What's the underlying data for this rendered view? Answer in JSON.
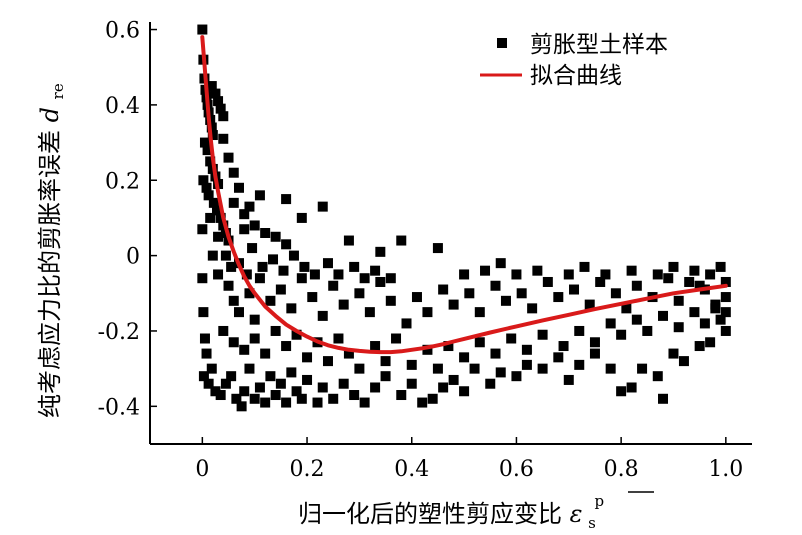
{
  "chart_data": {
    "type": "scatter",
    "title": "",
    "xlabel": "归一化后的塑性剪应变比",
    "xlabel_symbol": "ε",
    "xlabel_symbol_sup": "p",
    "xlabel_symbol_sub": "s",
    "ylabel": "纯考虑应力比的剪胀率误差",
    "ylabel_symbol": "d",
    "ylabel_symbol_sub": "re",
    "xlim": [
      -0.1,
      1.05
    ],
    "ylim": [
      -0.5,
      0.62
    ],
    "x_ticks": [
      "0",
      "0.2",
      "0.4",
      "0.6",
      "0.8",
      "1.0"
    ],
    "x_tick_values": [
      0,
      0.2,
      0.4,
      0.6,
      0.8,
      1.0
    ],
    "y_ticks": [
      "0.6",
      "0.4",
      "0.2",
      "0",
      "-0.2",
      "-0.4"
    ],
    "y_tick_values": [
      0.6,
      0.4,
      0.2,
      0,
      -0.2,
      -0.4
    ],
    "grid": false,
    "legend_position": "top-right",
    "series": [
      {
        "name": "剪胀型土样本",
        "kind": "scatter",
        "color": "#000000",
        "marker": "square",
        "points": [
          [
            0.0,
            0.6
          ],
          [
            0.002,
            0.52
          ],
          [
            0.004,
            0.47
          ],
          [
            0.006,
            0.44
          ],
          [
            0.008,
            0.42
          ],
          [
            0.01,
            0.4
          ],
          [
            0.012,
            0.38
          ],
          [
            0.015,
            0.36
          ],
          [
            0.018,
            0.34
          ],
          [
            0.02,
            0.32
          ],
          [
            0.005,
            0.3
          ],
          [
            0.01,
            0.28
          ],
          [
            0.015,
            0.25
          ],
          [
            0.02,
            0.23
          ],
          [
            0.025,
            0.21
          ],
          [
            0.03,
            0.19
          ],
          [
            0.002,
            0.2
          ],
          [
            0.008,
            0.18
          ],
          [
            0.012,
            0.16
          ],
          [
            0.022,
            0.14
          ],
          [
            0.028,
            0.12
          ],
          [
            0.035,
            0.1
          ],
          [
            0.04,
            0.08
          ],
          [
            0.045,
            0.06
          ],
          [
            0.05,
            0.04
          ],
          [
            0.03,
            0.41
          ],
          [
            0.025,
            0.43
          ],
          [
            0.018,
            0.45
          ],
          [
            0.035,
            0.39
          ],
          [
            0.04,
            0.37
          ],
          [
            0.0,
            0.07
          ],
          [
            0.0,
            -0.06
          ],
          [
            0.002,
            -0.15
          ],
          [
            0.005,
            -0.22
          ],
          [
            0.003,
            -0.32
          ],
          [
            0.008,
            -0.26
          ],
          [
            0.012,
            -0.34
          ],
          [
            0.018,
            -0.3
          ],
          [
            0.025,
            -0.36
          ],
          [
            0.035,
            -0.37
          ],
          [
            0.045,
            -0.34
          ],
          [
            0.055,
            -0.32
          ],
          [
            0.065,
            -0.38
          ],
          [
            0.075,
            -0.4
          ],
          [
            0.08,
            -0.36
          ],
          [
            0.09,
            -0.3
          ],
          [
            0.1,
            -0.38
          ],
          [
            0.11,
            -0.35
          ],
          [
            0.12,
            -0.39
          ],
          [
            0.13,
            -0.32
          ],
          [
            0.14,
            -0.37
          ],
          [
            0.15,
            -0.34
          ],
          [
            0.16,
            -0.39
          ],
          [
            0.17,
            -0.31
          ],
          [
            0.18,
            -0.36
          ],
          [
            0.19,
            -0.38
          ],
          [
            0.2,
            -0.33
          ],
          [
            0.22,
            -0.39
          ],
          [
            0.23,
            -0.35
          ],
          [
            0.25,
            -0.38
          ],
          [
            0.27,
            -0.34
          ],
          [
            0.29,
            -0.37
          ],
          [
            0.31,
            -0.39
          ],
          [
            0.33,
            -0.35
          ],
          [
            0.35,
            -0.32
          ],
          [
            0.38,
            -0.37
          ],
          [
            0.4,
            -0.34
          ],
          [
            0.42,
            -0.39
          ],
          [
            0.44,
            -0.38
          ],
          [
            0.46,
            -0.35
          ],
          [
            0.48,
            -0.33
          ],
          [
            0.5,
            -0.36
          ],
          [
            0.52,
            -0.3
          ],
          [
            0.55,
            -0.34
          ],
          [
            0.57,
            -0.31
          ],
          [
            0.6,
            -0.32
          ],
          [
            0.62,
            -0.29
          ],
          [
            0.65,
            -0.3
          ],
          [
            0.68,
            -0.27
          ],
          [
            0.7,
            -0.33
          ],
          [
            0.72,
            -0.29
          ],
          [
            0.75,
            -0.26
          ],
          [
            0.78,
            -0.3
          ],
          [
            0.8,
            -0.36
          ],
          [
            0.82,
            -0.35
          ],
          [
            0.84,
            -0.3
          ],
          [
            0.87,
            -0.32
          ],
          [
            0.88,
            -0.38
          ],
          [
            0.9,
            -0.26
          ],
          [
            0.92,
            -0.28
          ],
          [
            0.95,
            -0.24
          ],
          [
            0.97,
            -0.23
          ],
          [
            1.0,
            -0.2
          ],
          [
            0.99,
            -0.17
          ],
          [
            0.98,
            -0.13
          ],
          [
            0.06,
            0.14
          ],
          [
            0.08,
            0.11
          ],
          [
            0.1,
            0.08
          ],
          [
            0.12,
            0.06
          ],
          [
            0.14,
            0.05
          ],
          [
            0.16,
            0.03
          ],
          [
            0.19,
            0.1
          ],
          [
            0.23,
            0.13
          ],
          [
            0.28,
            0.04
          ],
          [
            0.34,
            0.01
          ],
          [
            0.38,
            0.04
          ],
          [
            0.45,
            0.02
          ],
          [
            0.06,
            0.22
          ],
          [
            0.07,
            0.18
          ],
          [
            0.09,
            0.13
          ],
          [
            0.11,
            0.16
          ],
          [
            0.05,
            0.26
          ],
          [
            0.04,
            0.31
          ],
          [
            0.16,
            0.15
          ],
          [
            0.08,
            0.07
          ],
          [
            0.03,
            -0.05
          ],
          [
            0.05,
            -0.08
          ],
          [
            0.06,
            -0.12
          ],
          [
            0.07,
            -0.15
          ],
          [
            0.09,
            -0.1
          ],
          [
            0.1,
            -0.17
          ],
          [
            0.11,
            -0.06
          ],
          [
            0.13,
            -0.12
          ],
          [
            0.15,
            -0.09
          ],
          [
            0.17,
            -0.14
          ],
          [
            0.19,
            -0.06
          ],
          [
            0.21,
            -0.11
          ],
          [
            0.23,
            -0.16
          ],
          [
            0.25,
            -0.08
          ],
          [
            0.27,
            -0.13
          ],
          [
            0.3,
            -0.1
          ],
          [
            0.32,
            -0.15
          ],
          [
            0.34,
            -0.07
          ],
          [
            0.36,
            -0.12
          ],
          [
            0.39,
            -0.18
          ],
          [
            0.41,
            -0.11
          ],
          [
            0.43,
            -0.15
          ],
          [
            0.46,
            -0.09
          ],
          [
            0.48,
            -0.13
          ],
          [
            0.51,
            -0.1
          ],
          [
            0.53,
            -0.15
          ],
          [
            0.56,
            -0.08
          ],
          [
            0.58,
            -0.12
          ],
          [
            0.61,
            -0.1
          ],
          [
            0.63,
            -0.14
          ],
          [
            0.66,
            -0.07
          ],
          [
            0.68,
            -0.11
          ],
          [
            0.71,
            -0.09
          ],
          [
            0.74,
            -0.13
          ],
          [
            0.76,
            -0.07
          ],
          [
            0.79,
            -0.1
          ],
          [
            0.81,
            -0.14
          ],
          [
            0.83,
            -0.08
          ],
          [
            0.86,
            -0.11
          ],
          [
            0.89,
            -0.06
          ],
          [
            0.91,
            -0.12
          ],
          [
            0.94,
            -0.04
          ],
          [
            0.96,
            -0.09
          ],
          [
            0.99,
            -0.03
          ],
          [
            1.0,
            -0.11
          ],
          [
            0.04,
            -0.2
          ],
          [
            0.06,
            -0.23
          ],
          [
            0.08,
            -0.25
          ],
          [
            0.1,
            -0.22
          ],
          [
            0.12,
            -0.26
          ],
          [
            0.14,
            -0.2
          ],
          [
            0.16,
            -0.24
          ],
          [
            0.18,
            -0.21
          ],
          [
            0.2,
            -0.27
          ],
          [
            0.22,
            -0.23
          ],
          [
            0.24,
            -0.28
          ],
          [
            0.26,
            -0.22
          ],
          [
            0.28,
            -0.26
          ],
          [
            0.3,
            -0.3
          ],
          [
            0.33,
            -0.24
          ],
          [
            0.35,
            -0.28
          ],
          [
            0.37,
            -0.22
          ],
          [
            0.4,
            -0.29
          ],
          [
            0.43,
            -0.25
          ],
          [
            0.45,
            -0.3
          ],
          [
            0.47,
            -0.24
          ],
          [
            0.5,
            -0.27
          ],
          [
            0.53,
            -0.23
          ],
          [
            0.56,
            -0.26
          ],
          [
            0.59,
            -0.22
          ],
          [
            0.62,
            -0.25
          ],
          [
            0.65,
            -0.21
          ],
          [
            0.69,
            -0.24
          ],
          [
            0.72,
            -0.2
          ],
          [
            0.75,
            -0.23
          ],
          [
            0.78,
            -0.18
          ],
          [
            0.8,
            -0.21
          ],
          [
            0.83,
            -0.17
          ],
          [
            0.85,
            -0.2
          ],
          [
            0.88,
            -0.16
          ],
          [
            0.91,
            -0.19
          ],
          [
            0.94,
            -0.15
          ],
          [
            0.96,
            -0.18
          ],
          [
            0.98,
            -0.14
          ],
          [
            1.0,
            -0.15
          ],
          [
            0.02,
            0.0
          ],
          [
            0.03,
            0.05
          ],
          [
            0.015,
            0.1
          ],
          [
            0.045,
            0.0
          ],
          [
            0.055,
            -0.03
          ],
          [
            0.07,
            -0.02
          ],
          [
            0.085,
            -0.05
          ],
          [
            0.095,
            0.02
          ],
          [
            0.115,
            -0.03
          ],
          [
            0.135,
            -0.01
          ],
          [
            0.155,
            -0.04
          ],
          [
            0.175,
            0.0
          ],
          [
            0.195,
            -0.03
          ],
          [
            0.215,
            -0.05
          ],
          [
            0.24,
            -0.02
          ],
          [
            0.26,
            -0.05
          ],
          [
            0.29,
            -0.03
          ],
          [
            0.31,
            -0.06
          ],
          [
            0.33,
            -0.04
          ],
          [
            0.36,
            -0.06
          ],
          [
            0.5,
            -0.05
          ],
          [
            0.54,
            -0.04
          ],
          [
            0.57,
            -0.02
          ],
          [
            0.6,
            -0.05
          ],
          [
            0.64,
            -0.04
          ],
          [
            0.7,
            -0.05
          ],
          [
            0.73,
            -0.03
          ],
          [
            0.77,
            -0.05
          ],
          [
            0.82,
            -0.04
          ],
          [
            0.87,
            -0.05
          ],
          [
            0.9,
            -0.03
          ],
          [
            0.93,
            -0.07
          ],
          [
            0.97,
            -0.05
          ],
          [
            1.0,
            -0.07
          ],
          [
            0.95,
            -0.08
          ]
        ]
      },
      {
        "name": "拟合曲线",
        "kind": "line",
        "color": "#d91a1a",
        "points": [
          [
            0.0,
            0.58
          ],
          [
            0.004,
            0.51
          ],
          [
            0.008,
            0.44
          ],
          [
            0.012,
            0.37
          ],
          [
            0.016,
            0.31
          ],
          [
            0.02,
            0.26
          ],
          [
            0.025,
            0.21
          ],
          [
            0.03,
            0.17
          ],
          [
            0.04,
            0.1
          ],
          [
            0.05,
            0.05
          ],
          [
            0.06,
            0.01
          ],
          [
            0.07,
            -0.025
          ],
          [
            0.08,
            -0.055
          ],
          [
            0.09,
            -0.08
          ],
          [
            0.1,
            -0.1
          ],
          [
            0.12,
            -0.135
          ],
          [
            0.14,
            -0.16
          ],
          [
            0.16,
            -0.183
          ],
          [
            0.18,
            -0.2
          ],
          [
            0.2,
            -0.215
          ],
          [
            0.22,
            -0.228
          ],
          [
            0.24,
            -0.238
          ],
          [
            0.26,
            -0.245
          ],
          [
            0.28,
            -0.25
          ],
          [
            0.3,
            -0.253
          ],
          [
            0.32,
            -0.255
          ],
          [
            0.34,
            -0.256
          ],
          [
            0.36,
            -0.256
          ],
          [
            0.38,
            -0.254
          ],
          [
            0.4,
            -0.25
          ],
          [
            0.42,
            -0.246
          ],
          [
            0.44,
            -0.241
          ],
          [
            0.46,
            -0.235
          ],
          [
            0.48,
            -0.228
          ],
          [
            0.5,
            -0.221
          ],
          [
            0.55,
            -0.204
          ],
          [
            0.6,
            -0.188
          ],
          [
            0.65,
            -0.172
          ],
          [
            0.7,
            -0.157
          ],
          [
            0.75,
            -0.142
          ],
          [
            0.8,
            -0.128
          ],
          [
            0.85,
            -0.114
          ],
          [
            0.9,
            -0.1
          ],
          [
            0.95,
            -0.09
          ],
          [
            1.0,
            -0.08
          ]
        ]
      }
    ]
  }
}
